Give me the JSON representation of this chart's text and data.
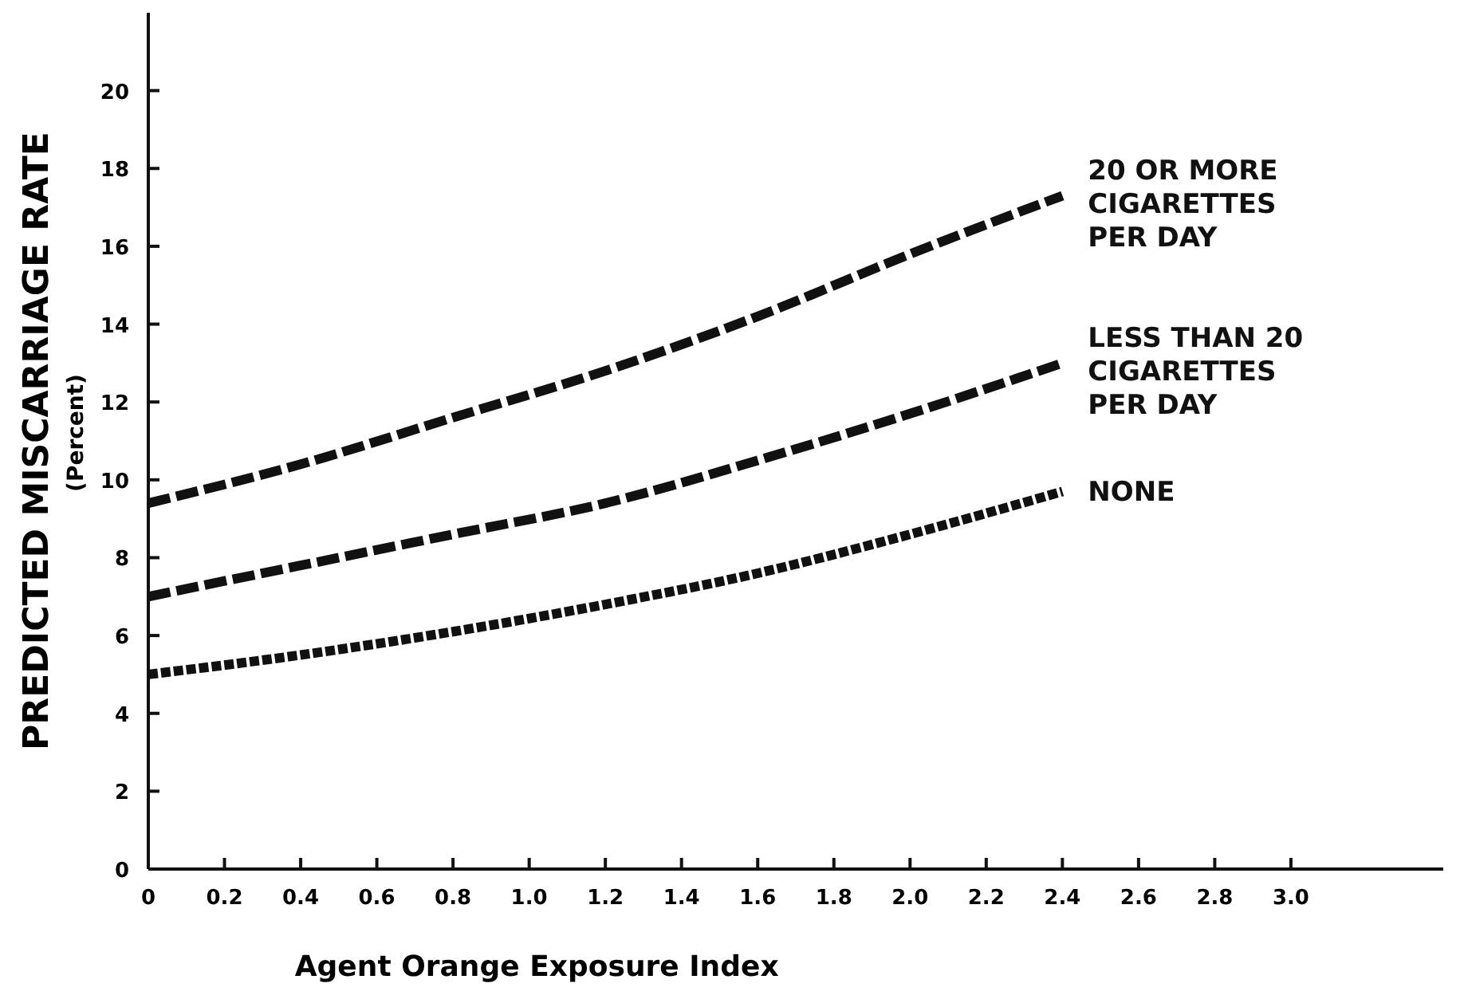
{
  "chart_data": {
    "type": "line",
    "xlabel": "Agent Orange Exposure Index",
    "ylabel": "PREDICTED MISCARRIAGE RATE\n(Percent)",
    "x": [
      0,
      0.4,
      0.8,
      1.2,
      1.6,
      2.0,
      2.4
    ],
    "series": [
      {
        "name": "20 OR MORE CIGARETTES PER DAY",
        "color": "#111111",
        "line_style": "dashed",
        "values": [
          9.4,
          10.4,
          11.6,
          12.8,
          14.2,
          15.8,
          17.3
        ]
      },
      {
        "name": "LESS THAN 20 CIGARETTES PER DAY",
        "color": "#111111",
        "line_style": "dashed",
        "values": [
          7.0,
          7.8,
          8.6,
          9.4,
          10.5,
          11.7,
          13.0
        ]
      },
      {
        "name": "NONE",
        "color": "#111111",
        "line_style": "dotted",
        "values": [
          5.0,
          5.5,
          6.1,
          6.8,
          7.6,
          8.6,
          9.7
        ]
      }
    ],
    "xlim": [
      0,
      3.4
    ],
    "ylim": [
      0,
      22
    ],
    "xticks": [
      0,
      0.2,
      0.4,
      0.6,
      0.8,
      "1.0",
      1.2,
      1.4,
      1.6,
      1.8,
      "2.0",
      2.2,
      2.4,
      2.6,
      2.8,
      "3.0"
    ],
    "yticks": [
      0,
      2,
      4,
      6,
      8,
      10,
      12,
      14,
      16,
      18,
      20
    ],
    "grid": false,
    "legend": false,
    "marker": "none"
  }
}
